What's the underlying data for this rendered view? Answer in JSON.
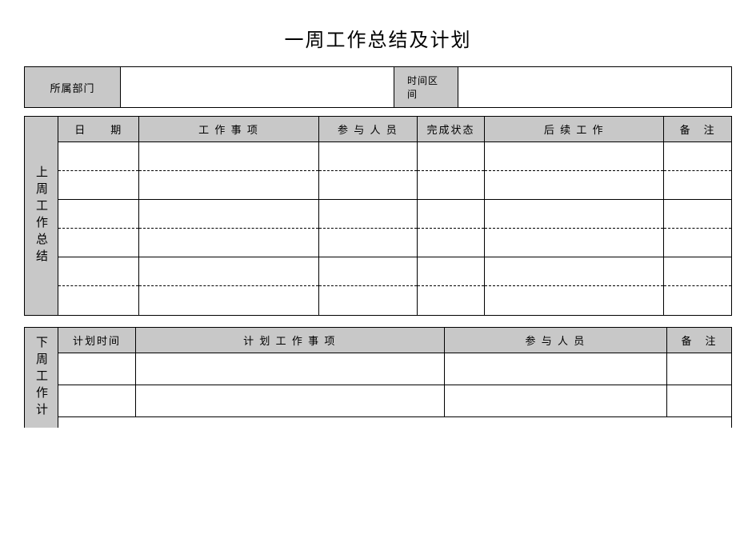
{
  "title": "一周工作总结及计划",
  "meta": {
    "dept_label": "所属部门",
    "dept_value": "",
    "time_label": "时间区间",
    "time_value": ""
  },
  "summary": {
    "side_label": "上周工作总结",
    "columns": {
      "date": "日　　期",
      "task": "工 作 事 项",
      "people": "参 与 人 员",
      "status": "完成状态",
      "followup": "后 续 工 作",
      "remark": "备　注"
    },
    "col_widths": {
      "date": 90,
      "task": 200,
      "people": 110,
      "status": 75,
      "followup": 200,
      "remark": 75
    },
    "rows": [
      {
        "date": "",
        "task": "",
        "people": "",
        "status": "",
        "followup": "",
        "remark": ""
      },
      {
        "date": "",
        "task": "",
        "people": "",
        "status": "",
        "followup": "",
        "remark": ""
      },
      {
        "date": "",
        "task": "",
        "people": "",
        "status": "",
        "followup": "",
        "remark": ""
      },
      {
        "date": "",
        "task": "",
        "people": "",
        "status": "",
        "followup": "",
        "remark": ""
      },
      {
        "date": "",
        "task": "",
        "people": "",
        "status": "",
        "followup": "",
        "remark": ""
      },
      {
        "date": "",
        "task": "",
        "people": "",
        "status": "",
        "followup": "",
        "remark": ""
      }
    ]
  },
  "plan": {
    "side_label": "下周工作计",
    "columns": {
      "time": "计划时间",
      "task": "计 划 工 作 事 项",
      "people": "参 与 人 员",
      "remark": "备　注"
    },
    "col_widths": {
      "time": 90,
      "task": 360,
      "people": 260,
      "remark": 75
    },
    "rows": [
      {
        "time": "",
        "task": "",
        "people": "",
        "remark": ""
      },
      {
        "time": "",
        "task": "",
        "people": "",
        "remark": ""
      }
    ]
  },
  "styling": {
    "background": "#ffffff",
    "header_bg": "#c8c8c8",
    "border_color": "#000000",
    "title_fontsize": 24,
    "cell_fontsize": 14
  }
}
